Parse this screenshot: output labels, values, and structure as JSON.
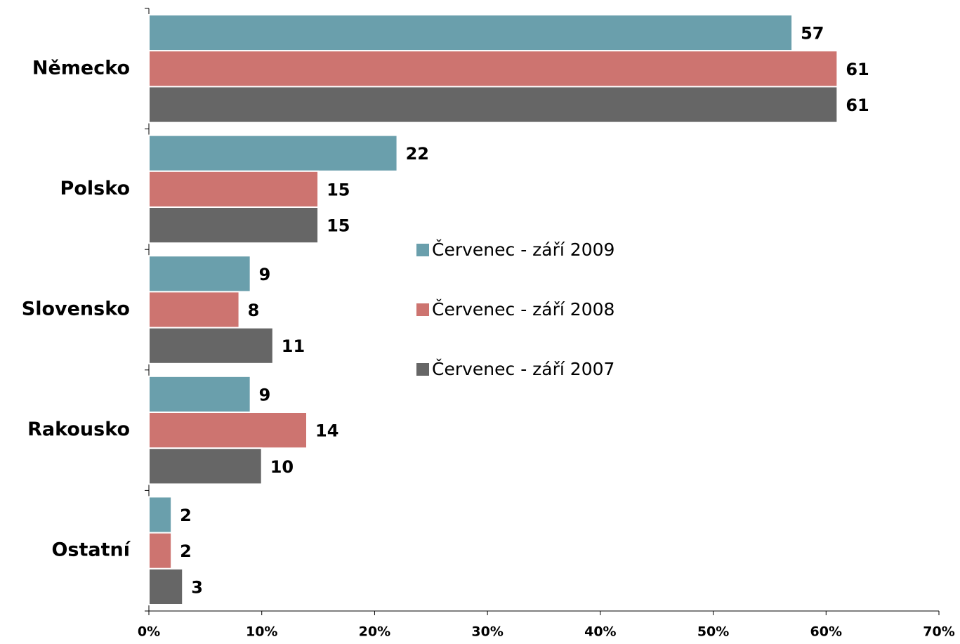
{
  "chart_data": {
    "type": "hbar",
    "categories": [
      "Německo",
      "Polsko",
      "Slovensko",
      "Rakousko",
      "Ostatní"
    ],
    "series": [
      {
        "name": "Červenec - září 2009",
        "color": "#6a9fac",
        "values": [
          57,
          22,
          9,
          9,
          2
        ]
      },
      {
        "name": "Červenec - září 2008",
        "color": "#cd7470",
        "values": [
          61,
          15,
          8,
          14,
          2
        ]
      },
      {
        "name": "Červenec - září 2007",
        "color": "#666666",
        "values": [
          61,
          15,
          11,
          10,
          3
        ]
      }
    ],
    "xlim": [
      0,
      70
    ],
    "xticks": [
      {
        "value": 0,
        "label": "0%"
      },
      {
        "value": 10,
        "label": "10%"
      },
      {
        "value": 20,
        "label": "20%"
      },
      {
        "value": 30,
        "label": "30%"
      },
      {
        "value": 40,
        "label": "40%"
      },
      {
        "value": 50,
        "label": "50%"
      },
      {
        "value": 60,
        "label": "60%"
      },
      {
        "value": 70,
        "label": "70%"
      }
    ],
    "grid": false,
    "legend_position": "center"
  }
}
